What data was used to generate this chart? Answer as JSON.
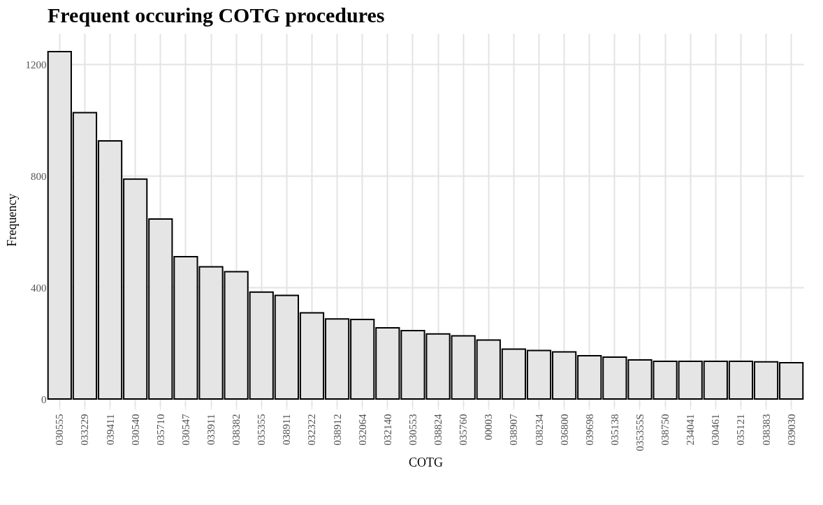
{
  "chart_data": {
    "type": "bar",
    "title": "Frequent occuring COTG procedures",
    "xlabel": "COTG",
    "ylabel": "Frequency",
    "categories": [
      "030555",
      "033229",
      "039411",
      "030540",
      "035710",
      "030547",
      "033911",
      "038382",
      "035355",
      "038911",
      "032322",
      "038912",
      "032064",
      "032140",
      "030553",
      "038824",
      "035760",
      "00003",
      "038907",
      "038234",
      "036800",
      "039698",
      "035138",
      "035355S",
      "038750",
      "234041",
      "030461",
      "035121",
      "038383",
      "039030"
    ],
    "values": [
      1245,
      1026,
      925,
      788,
      645,
      510,
      474,
      456,
      383,
      371,
      309,
      287,
      285,
      255,
      245,
      233,
      226,
      211,
      179,
      174,
      169,
      155,
      150,
      140,
      135,
      135,
      135,
      135,
      133,
      130
    ],
    "color": "#e5e5e5",
    "ylim": [
      -25,
      1310
    ],
    "yticks": [
      0,
      400,
      800,
      1200
    ],
    "grid": true
  }
}
